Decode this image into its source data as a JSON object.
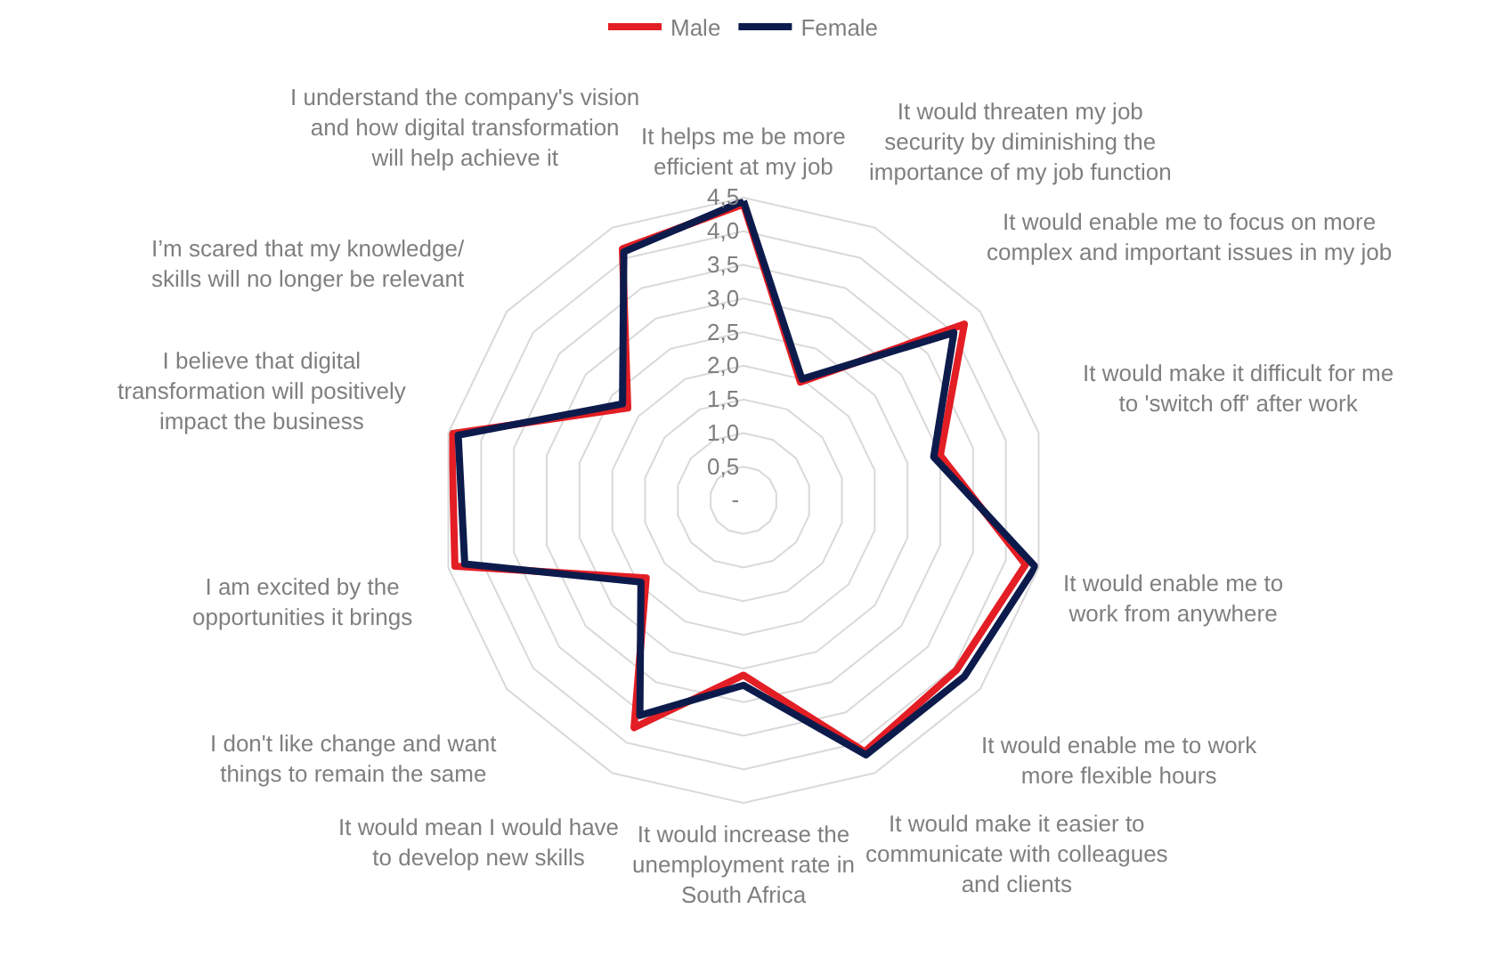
{
  "chart_data": {
    "type": "radar",
    "categories": [
      "It helps me be more efficient at my job",
      "It would threaten my job security by diminishing the importance of my job function",
      "It would enable me to focus on more complex and important issues in my job",
      "It would make it difficult for me to 'switch off' after work",
      "It would enable me to work from anywhere",
      "It would enable me to work more flexible hours",
      "It would make it easier to communicate with colleagues and clients",
      "It would increase the unemployment rate in South Africa",
      "It would mean I would have to develop new skills",
      "I don't like change and want things to remain the same",
      "I am excited by the opportunities it brings",
      "I believe that digital transformation will positively impact the business",
      "I’m scared that my knowledge/ skills will no longer be relevant",
      "I understand the company's vision and how digital transformation will help achieve it"
    ],
    "series": [
      {
        "name": "Male",
        "color": "#e31e24",
        "values": [
          4.4,
          1.95,
          4.2,
          3.0,
          4.3,
          4.05,
          4.15,
          2.6,
          3.75,
          1.85,
          4.4,
          4.45,
          2.2,
          4.15
        ]
      },
      {
        "name": "Female",
        "color": "#0d1b4c",
        "values": [
          4.45,
          2.0,
          4.0,
          2.9,
          4.45,
          4.2,
          4.2,
          2.75,
          3.55,
          1.95,
          4.25,
          4.35,
          2.3,
          4.1
        ]
      }
    ],
    "ylim": [
      0,
      4.5
    ],
    "yticks": [
      {
        "value": 0,
        "label": "-"
      },
      {
        "value": 0.5,
        "label": "0,5"
      },
      {
        "value": 1.0,
        "label": "1,0"
      },
      {
        "value": 1.5,
        "label": "1,5"
      },
      {
        "value": 2.0,
        "label": "2,0"
      },
      {
        "value": 2.5,
        "label": "2,5"
      },
      {
        "value": 3.0,
        "label": "3,0"
      },
      {
        "value": 3.5,
        "label": "3,5"
      },
      {
        "value": 4.0,
        "label": "4,0"
      },
      {
        "value": 4.5,
        "label": "4,5"
      }
    ],
    "grid": true,
    "legend": "top",
    "line_style": "solid",
    "marker": "none"
  }
}
